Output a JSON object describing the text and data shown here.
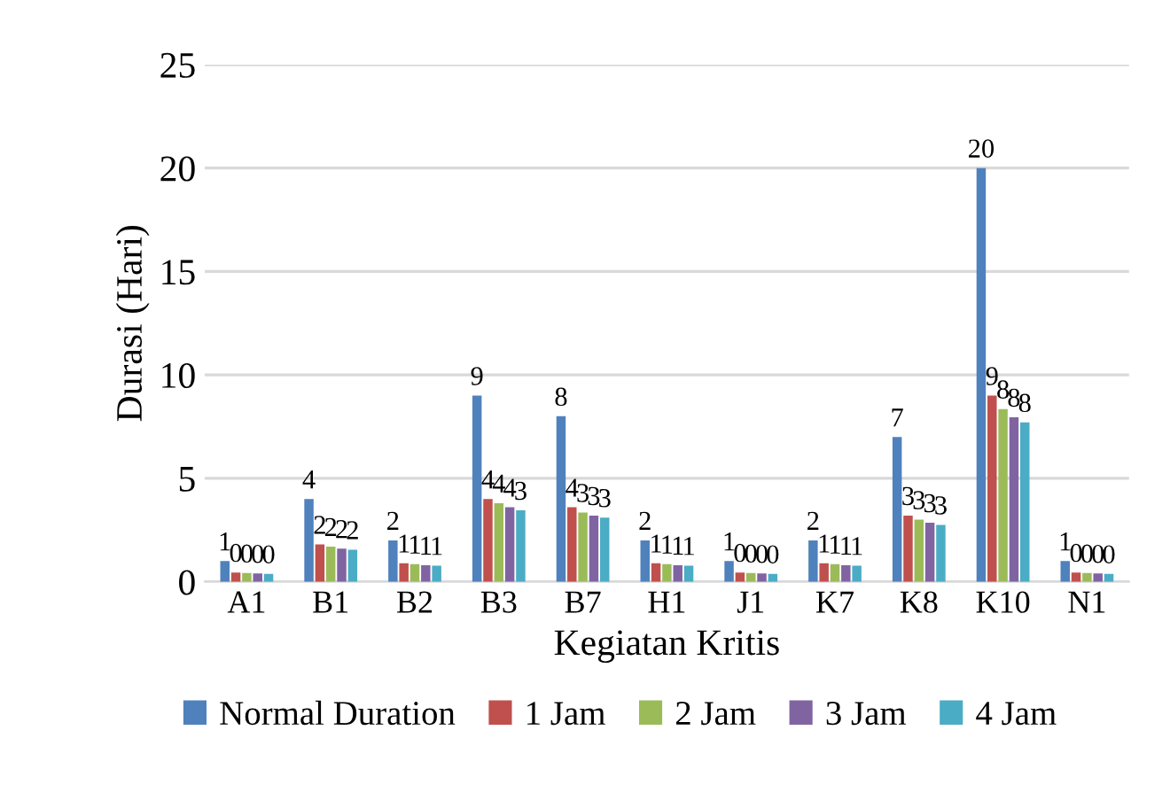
{
  "chart_data": {
    "type": "bar",
    "xlabel": "Kegiatan Kritis",
    "ylabel": "Durasi (Hari)",
    "categories": [
      "A1",
      "B1",
      "B2",
      "B3",
      "B7",
      "H1",
      "J1",
      "K7",
      "K8",
      "K10",
      "N1"
    ],
    "ylim": [
      0,
      25
    ],
    "yticks": [
      0,
      5,
      10,
      15,
      20,
      25
    ],
    "grid": "y",
    "legend": "bottom",
    "series": [
      {
        "name": "Normal Duration",
        "color": "#4f81bd",
        "values": [
          1,
          4,
          2,
          9,
          8,
          2,
          1,
          2,
          7,
          20,
          1
        ],
        "value_labels": [
          "1",
          "4",
          "2",
          "9",
          "8",
          "2",
          "1",
          "2",
          "7",
          "20",
          "1"
        ]
      },
      {
        "name": "1 Jam",
        "color": "#c0504d",
        "values": [
          0.45,
          1.8,
          0.9,
          4.0,
          3.6,
          0.9,
          0.45,
          0.9,
          3.2,
          9.0,
          0.45
        ],
        "value_labels": [
          "0",
          "2",
          "1",
          "4",
          "4",
          "1",
          "0",
          "1",
          "3",
          "9",
          "0"
        ]
      },
      {
        "name": "2 Jam",
        "color": "#9bbb59",
        "values": [
          0.42,
          1.7,
          0.85,
          3.8,
          3.35,
          0.85,
          0.42,
          0.85,
          3.0,
          8.35,
          0.42
        ],
        "value_labels": [
          "0",
          "2",
          "1",
          "4",
          "3",
          "1",
          "0",
          "1",
          "3",
          "8",
          "0"
        ]
      },
      {
        "name": "3 Jam",
        "color": "#8064a2",
        "values": [
          0.4,
          1.6,
          0.8,
          3.6,
          3.2,
          0.8,
          0.4,
          0.8,
          2.85,
          7.95,
          0.4
        ],
        "value_labels": [
          "0",
          "2",
          "1",
          "4",
          "3",
          "1",
          "0",
          "1",
          "3",
          "8",
          "0"
        ]
      },
      {
        "name": "4 Jam",
        "color": "#4bacc6",
        "values": [
          0.38,
          1.55,
          0.78,
          3.45,
          3.1,
          0.78,
          0.38,
          0.78,
          2.75,
          7.7,
          0.38
        ],
        "value_labels": [
          "0",
          "2",
          "1",
          "3",
          "3",
          "1",
          "0",
          "1",
          "3",
          "8",
          "0"
        ]
      }
    ]
  }
}
